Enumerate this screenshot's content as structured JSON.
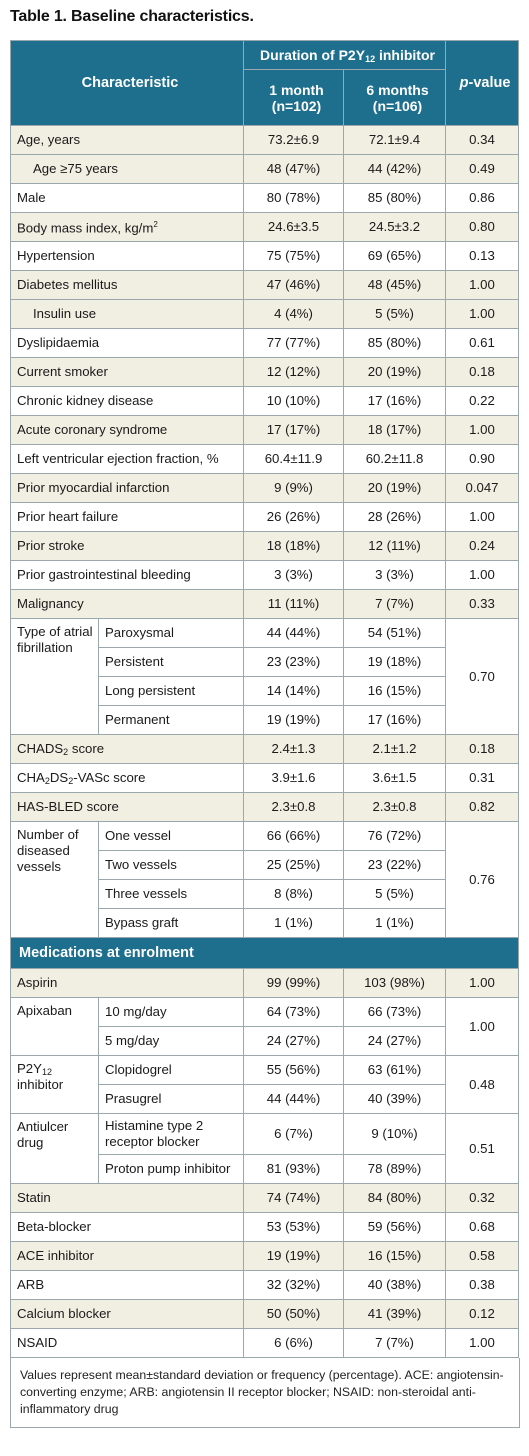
{
  "title": "Table 1. Baseline characteristics.",
  "header": {
    "characteristic": "Characteristic",
    "duration_pre": "Duration of P2Y",
    "duration_sub": "12",
    "duration_post": " inhibitor",
    "col1_line1": "1 month",
    "col1_line2": "(n=102)",
    "col2_line1": "6 months",
    "col2_line2": "(n=106)",
    "pvalue_italic": "p",
    "pvalue_rest": "-value"
  },
  "rows": {
    "age": {
      "label": "Age, years",
      "m1": "73.2±6.9",
      "m6": "72.1±9.4",
      "p": "0.34"
    },
    "age75": {
      "label": "Age ≥75 years",
      "m1": "48 (47%)",
      "m6": "44 (42%)",
      "p": "0.49"
    },
    "male": {
      "label": "Male",
      "m1": "80 (78%)",
      "m6": "85 (80%)",
      "p": "0.86"
    },
    "bmi": {
      "label": "Body mass index, kg/m",
      "sup": "2",
      "m1": "24.6±3.5",
      "m6": "24.5±3.2",
      "p": "0.80"
    },
    "htn": {
      "label": "Hypertension",
      "m1": "75 (75%)",
      "m6": "69 (65%)",
      "p": "0.13"
    },
    "dm": {
      "label": "Diabetes mellitus",
      "m1": "47 (46%)",
      "m6": "48 (45%)",
      "p": "1.00"
    },
    "insulin": {
      "label": "Insulin use",
      "m1": "4 (4%)",
      "m6": "5 (5%)",
      "p": "1.00"
    },
    "dyslip": {
      "label": "Dyslipidaemia",
      "m1": "77 (77%)",
      "m6": "85 (80%)",
      "p": "0.61"
    },
    "smoker": {
      "label": "Current smoker",
      "m1": "12 (12%)",
      "m6": "20 (19%)",
      "p": "0.18"
    },
    "ckd": {
      "label": "Chronic kidney disease",
      "m1": "10 (10%)",
      "m6": "17 (16%)",
      "p": "0.22"
    },
    "acs": {
      "label": "Acute coronary syndrome",
      "m1": "17 (17%)",
      "m6": "18 (17%)",
      "p": "1.00"
    },
    "lvef": {
      "label": "Left ventricular ejection fraction, %",
      "m1": "60.4±11.9",
      "m6": "60.2±11.8",
      "p": "0.90"
    },
    "pmi": {
      "label": "Prior myocardial infarction",
      "m1": "9 (9%)",
      "m6": "20 (19%)",
      "p": "0.047"
    },
    "phf": {
      "label": "Prior heart failure",
      "m1": "26 (26%)",
      "m6": "28 (26%)",
      "p": "1.00"
    },
    "pstroke": {
      "label": "Prior stroke",
      "m1": "18 (18%)",
      "m6": "12 (11%)",
      "p": "0.24"
    },
    "pgib": {
      "label": "Prior gastrointestinal bleeding",
      "m1": "3 (3%)",
      "m6": "3 (3%)",
      "p": "1.00"
    },
    "malig": {
      "label": "Malignancy",
      "m1": "11 (11%)",
      "m6": "7 (7%)",
      "p": "0.33"
    },
    "af": {
      "label": "Type of atrial fibrillation",
      "p": "0.70",
      "subs": [
        {
          "label": "Paroxysmal",
          "m1": "44 (44%)",
          "m6": "54 (51%)"
        },
        {
          "label": "Persistent",
          "m1": "23 (23%)",
          "m6": "19 (18%)"
        },
        {
          "label": "Long persistent",
          "m1": "14 (14%)",
          "m6": "16 (15%)"
        },
        {
          "label": "Permanent",
          "m1": "19 (19%)",
          "m6": "17 (16%)"
        }
      ]
    },
    "chads2": {
      "label_a": "CHADS",
      "sub": "2",
      "label_b": " score",
      "m1": "2.4±1.3",
      "m6": "2.1±1.2",
      "p": "0.18"
    },
    "cha2ds2": {
      "label_a": "CHA",
      "sub1": "2",
      "label_b": "DS",
      "sub2": "2",
      "label_c": "-VASc score",
      "m1": "3.9±1.6",
      "m6": "3.6±1.5",
      "p": "0.31"
    },
    "hasbled": {
      "label": "HAS-BLED score",
      "m1": "2.3±0.8",
      "m6": "2.3±0.8",
      "p": "0.82"
    },
    "vessels": {
      "label": "Number of diseased vessels",
      "p": "0.76",
      "subs": [
        {
          "label": "One vessel",
          "m1": "66 (66%)",
          "m6": "76 (72%)"
        },
        {
          "label": "Two vessels",
          "m1": "25 (25%)",
          "m6": "23 (22%)"
        },
        {
          "label": "Three vessels",
          "m1": "8 (8%)",
          "m6": "5 (5%)"
        },
        {
          "label": "Bypass graft",
          "m1": "1 (1%)",
          "m6": "1 (1%)"
        }
      ]
    }
  },
  "medications_header": "Medications at enrolment",
  "meds": {
    "aspirin": {
      "label": "Aspirin",
      "m1": "99 (99%)",
      "m6": "103 (98%)",
      "p": "1.00"
    },
    "apixaban": {
      "label": "Apixaban",
      "p": "1.00",
      "subs": [
        {
          "label": "10 mg/day",
          "m1": "64 (73%)",
          "m6": "66 (73%)"
        },
        {
          "label": "5 mg/day",
          "m1": "24 (27%)",
          "m6": "24 (27%)"
        }
      ]
    },
    "p2y12": {
      "label_a": "P2Y",
      "sub": "12",
      "label_b": "inhibitor",
      "p": "0.48",
      "subs": [
        {
          "label": "Clopidogrel",
          "m1": "55 (56%)",
          "m6": "63 (61%)"
        },
        {
          "label": "Prasugrel",
          "m1": "44 (44%)",
          "m6": "40 (39%)"
        }
      ]
    },
    "antiulcer": {
      "label": "Antiulcer drug",
      "p": "0.51",
      "subs": [
        {
          "label": "Histamine type 2 receptor blocker",
          "m1": "6 (7%)",
          "m6": "9 (10%)"
        },
        {
          "label": "Proton pump inhibitor",
          "m1": "81 (93%)",
          "m6": "78 (89%)"
        }
      ]
    },
    "statin": {
      "label": "Statin",
      "m1": "74 (74%)",
      "m6": "84 (80%)",
      "p": "0.32"
    },
    "beta": {
      "label": "Beta-blocker",
      "m1": "53 (53%)",
      "m6": "59 (56%)",
      "p": "0.68"
    },
    "ace": {
      "label": "ACE inhibitor",
      "m1": "19 (19%)",
      "m6": "16 (15%)",
      "p": "0.58"
    },
    "arb": {
      "label": "ARB",
      "m1": "32 (32%)",
      "m6": "40 (38%)",
      "p": "0.38"
    },
    "ccb": {
      "label": "Calcium blocker",
      "m1": "50 (50%)",
      "m6": "41 (39%)",
      "p": "0.12"
    },
    "nsaid": {
      "label": "NSAID",
      "m1": "6 (6%)",
      "m6": "7 (7%)",
      "p": "1.00"
    }
  },
  "footnote": "Values represent mean±standard deviation or frequency (percentage). ACE: angiotensin-converting enzyme; ARB: angiotensin II receptor blocker; NSAID: non-steroidal anti-inflammatory drug",
  "colors": {
    "header_bg": "#1e6f8e",
    "shade_bg": "#f1efe2",
    "border": "#9aa7ad"
  }
}
